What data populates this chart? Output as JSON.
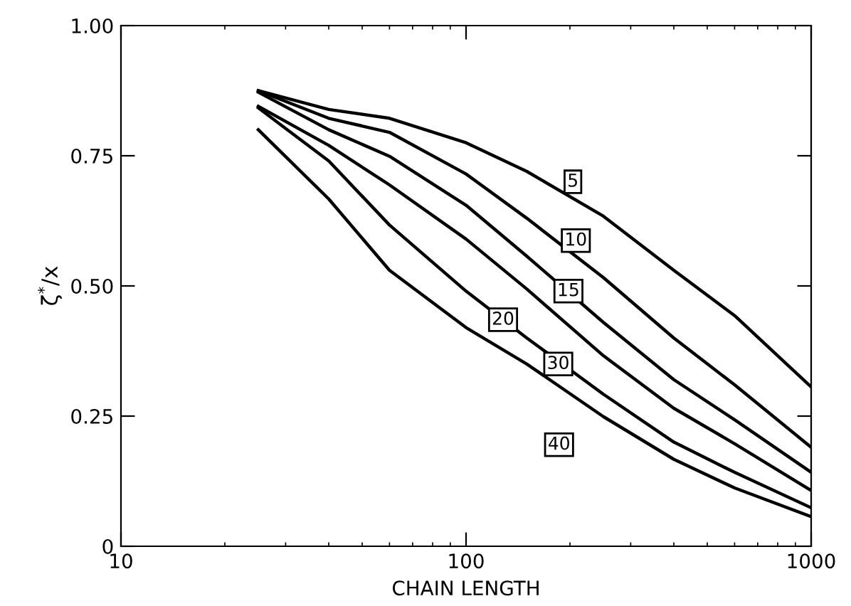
{
  "chart_data": {
    "type": "line",
    "xlabel": "CHAIN LENGTH",
    "ylabel": "ζ$^{*}$/x",
    "log": "x",
    "xlim": [
      10,
      1000
    ],
    "xticks": [
      10,
      100,
      1000
    ],
    "ylim": [
      0,
      1
    ],
    "yticks": [
      {
        "value": 0,
        "label": "0"
      },
      {
        "value": 0.25,
        "label": "0.25"
      },
      {
        "value": 0.5,
        "label": "0.50"
      },
      {
        "value": 0.75,
        "label": "0.75"
      },
      {
        "value": 1,
        "label": "1.00"
      }
    ],
    "grid": false,
    "marker": "none",
    "line_style": "solid",
    "x": [
      25,
      40,
      60,
      100,
      150,
      250,
      400,
      600,
      1000
    ],
    "series": [
      {
        "color": "#000000",
        "values": [
          0.875,
          0.839,
          0.822,
          0.775,
          0.72,
          0.634,
          0.53,
          0.443,
          0.306
        ]
      },
      {
        "color": "#000000",
        "values": [
          0.875,
          0.822,
          0.795,
          0.715,
          0.63,
          0.516,
          0.4,
          0.31,
          0.19
        ]
      },
      {
        "color": "#000000",
        "values": [
          0.872,
          0.8,
          0.749,
          0.655,
          0.557,
          0.43,
          0.32,
          0.243,
          0.142
        ]
      },
      {
        "color": "#000000",
        "values": [
          0.845,
          0.77,
          0.694,
          0.59,
          0.494,
          0.366,
          0.265,
          0.197,
          0.107
        ]
      },
      {
        "color": "#000000",
        "values": [
          0.842,
          0.74,
          0.617,
          0.49,
          0.4,
          0.292,
          0.2,
          0.142,
          0.074
        ]
      },
      {
        "color": "#000000",
        "values": [
          0.8,
          0.667,
          0.53,
          0.42,
          0.35,
          0.249,
          0.167,
          0.112,
          0.057
        ]
      }
    ],
    "annotations": [
      {
        "text": "5",
        "x": 204,
        "y": 0.7
      },
      {
        "text": "10",
        "x": 208,
        "y": 0.587
      },
      {
        "text": "15",
        "x": 198,
        "y": 0.49
      },
      {
        "text": "20",
        "x": 128,
        "y": 0.435
      },
      {
        "text": "30",
        "x": 185,
        "y": 0.35
      },
      {
        "text": "40",
        "x": 186,
        "y": 0.195
      }
    ]
  }
}
